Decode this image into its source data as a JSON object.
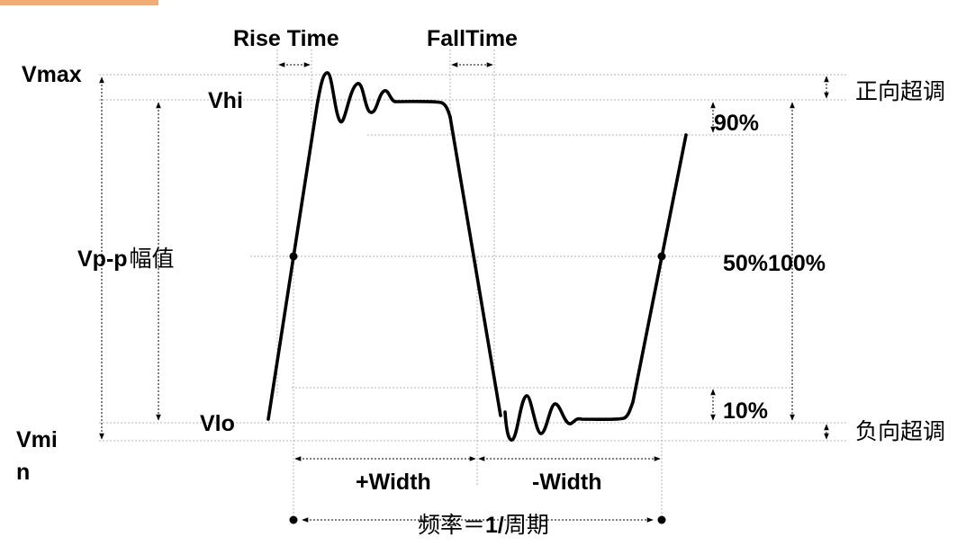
{
  "labels": {
    "rise_time": "Rise Time",
    "fall_time": "FallTime",
    "vmax": "Vmax",
    "vhi": "Vhi",
    "vpp": "Vp-p",
    "amplitude_cn": "幅值",
    "vlo": "Vlo",
    "vmin_line1": "Vmi",
    "vmin_line2": "n",
    "pct90": "90%",
    "pct50": "50%",
    "pct100": "100%",
    "pct10": "10%",
    "pos_overshoot": "正向超调",
    "neg_overshoot": "负向超调",
    "plus_width": "+Width",
    "minus_width": "-Width",
    "freq_prefix": "频率＝",
    "freq_one": "1/",
    "freq_suffix": "周期"
  },
  "colors": {
    "accent_bar": "#f3ac76",
    "waveform": "#000000",
    "guide_line": "#b5b5b5"
  }
}
